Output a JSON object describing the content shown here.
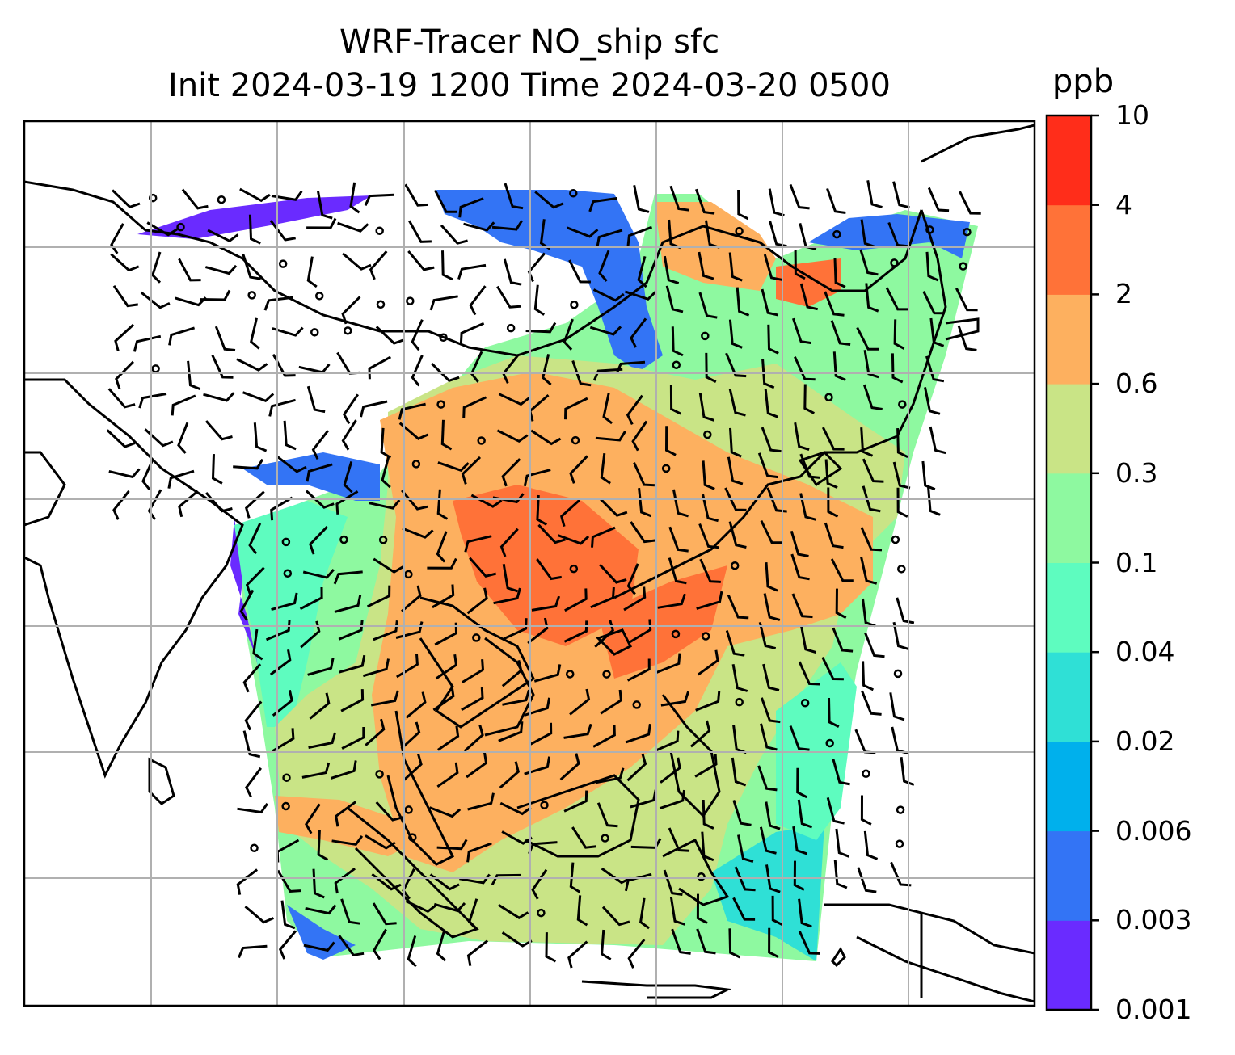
{
  "title": {
    "line1": "WRF-Tracer NO_ship sfc",
    "line2": "Init 2024-03-19 1200 Time 2024-03-20 0500"
  },
  "colorbar": {
    "unit": "ppb",
    "ticks": [
      "0.001",
      "0.003",
      "0.006",
      "0.02",
      "0.04",
      "0.1",
      "0.3",
      "0.6",
      "2",
      "4",
      "10"
    ],
    "colors": [
      "#6a2bff",
      "#3374f5",
      "#00b0ec",
      "#2fe0d6",
      "#5efcbf",
      "#8ef9a0",
      "#c9e486",
      "#fdb05f",
      "#ff7238",
      "#ff2d1a"
    ]
  },
  "map": {
    "field_colors": {
      "violet": "#6a2bff",
      "blue": "#3374f5",
      "cyan": "#2fe0d6",
      "aqua": "#5efcbf",
      "green": "#8ef9a0",
      "olive": "#c9e486",
      "orange": "#fdb05f",
      "redorange": "#ff7238"
    },
    "grid_color": "#b0b0b0",
    "coastline_color": "#000000",
    "barb_color": "#000000"
  }
}
